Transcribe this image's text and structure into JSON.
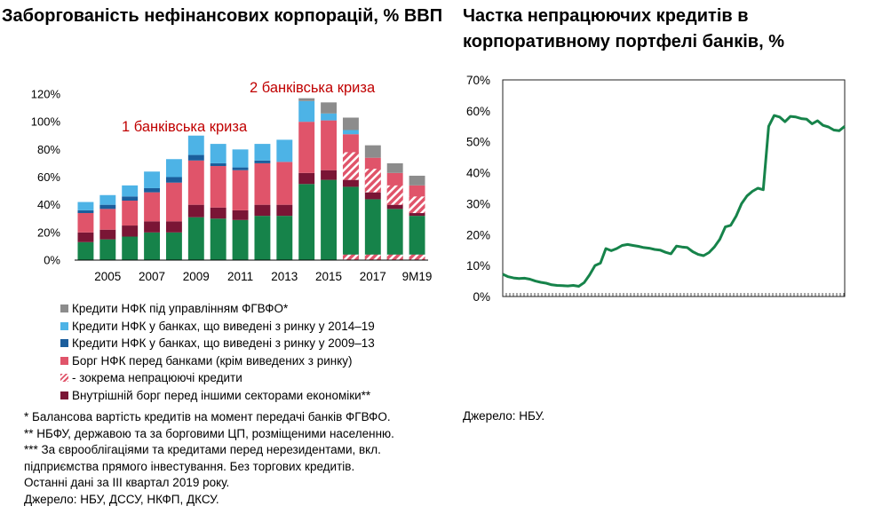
{
  "left": {
    "title": "Заборгованість нефінансових корпорацій, % ВВП",
    "crisis_labels": [
      "2 банківська криза",
      "1 банківська криза"
    ],
    "legend": [
      {
        "label": "Кредити НФК під управлінням ФГВФО*",
        "color": "#8c8c8c",
        "kind": "solid"
      },
      {
        "label": "Кредити НФК у банках, що виведені з ринку у 2014–19",
        "color": "#4db3e6",
        "kind": "solid"
      },
      {
        "label": "Кредити НФК у банках, що виведені з ринку у 2009–13",
        "color": "#1b5e9c",
        "kind": "solid"
      },
      {
        "label": "Борг НФК перед банками (крім виведених з ринку)",
        "color": "#e0546a",
        "kind": "solid"
      },
      {
        "label": "- зокрема непрацюючі кредити",
        "color": "#e0546a",
        "kind": "hatch"
      },
      {
        "label": "Внутрішній борг перед іншими секторами економіки**",
        "color": "#7a1535",
        "kind": "solid"
      }
    ],
    "notes": [
      "* Балансова вартість кредитів на момент передачі банків ФГВФО.",
      "** НБФУ, державою та за борговими ЦП, розміщеними населенню.",
      "*** За єврооблігаціями та кредитами перед нерезидентами, вкл.",
      "підприємства прямого інвестування. Без торгових кредитів.",
      "Останні дані за III квартал 2019 року.",
      "Джерело: НБУ, ДССУ, НКФП, ДКСУ."
    ]
  },
  "right": {
    "title": "Частка непрацюючих кредитів в корпоративному портфелі банків, %",
    "source": "Джерело: НБУ."
  },
  "colors": {
    "green": "#16834a",
    "maroon": "#7a1535",
    "red": "#e0546a",
    "darkblue": "#1b5e9c",
    "lightblue": "#4db3e6",
    "gray": "#8c8c8c",
    "crisis_text": "#c00000",
    "line": "#16834a"
  },
  "chart_data": [
    {
      "type": "bar",
      "stacked": true,
      "categories": [
        "2004",
        "2005",
        "2006",
        "2007",
        "2008",
        "2009",
        "2010",
        "2011",
        "2012",
        "2013",
        "2014",
        "2015",
        "2016",
        "2017",
        "2018",
        "9М19"
      ],
      "tick_labels": [
        "2005",
        "2007",
        "2009",
        "2011",
        "2013",
        "2015",
        "2017",
        "9М19"
      ],
      "ylim": [
        0,
        120
      ],
      "yticks": [
        "0%",
        "20%",
        "40%",
        "60%",
        "80%",
        "100%",
        "120%"
      ],
      "series": [
        {
          "name": "Внутрішній борг перед іншими секторами економіки**",
          "color_key": "green",
          "values": [
            13,
            15,
            17,
            20,
            20,
            31,
            30,
            29,
            32,
            32,
            55,
            58,
            53,
            44,
            37,
            32
          ]
        },
        {
          "name": "Внутрішній борг перед іншими секторами економіки**",
          "color_key": "maroon",
          "values": [
            7,
            7,
            8,
            8,
            8,
            9,
            8,
            7,
            8,
            8,
            8,
            7,
            5,
            5,
            3,
            2
          ]
        },
        {
          "name": "Борг НФК перед банками (крім виведених з ринку)",
          "color_key": "red",
          "values": [
            14,
            15,
            18,
            21,
            28,
            32,
            30,
            29,
            30,
            31,
            37,
            36,
            33,
            25,
            23,
            20
          ]
        },
        {
          "name": "Кредити НФК у банках, що виведені з ринку у 2009–13",
          "color_key": "darkblue",
          "values": [
            2,
            3,
            3,
            3,
            4,
            4,
            2,
            2,
            2,
            0,
            0,
            0,
            0,
            0,
            0,
            0
          ]
        },
        {
          "name": "Кредити НФК у банках, що виведені з ринку у 2014–19",
          "color_key": "lightblue",
          "values": [
            6,
            7,
            8,
            12,
            13,
            14,
            14,
            13,
            12,
            16,
            15,
            5,
            3,
            0,
            0,
            0
          ]
        },
        {
          "name": "Кредити НФК під управлінням ФГВФО*",
          "color_key": "gray",
          "values": [
            0,
            0,
            0,
            0,
            0,
            0,
            0,
            0,
            0,
            0,
            2,
            8,
            9,
            9,
            7,
            7
          ]
        }
      ],
      "npl_hatched_share": [
        0,
        0,
        0,
        0,
        0,
        0,
        0,
        0,
        0,
        0,
        0,
        0,
        20,
        17,
        14,
        12
      ]
    },
    {
      "type": "line",
      "ylim": [
        0,
        70
      ],
      "yticks": [
        "0%",
        "10%",
        "20%",
        "30%",
        "40%",
        "50%",
        "60%",
        "70%"
      ],
      "values": [
        7.2,
        6.4,
        6.0,
        5.8,
        5.9,
        5.6,
        5.0,
        4.6,
        4.3,
        3.8,
        3.6,
        3.5,
        3.4,
        3.6,
        3.3,
        4.5,
        7,
        10,
        10.8,
        15.5,
        14.8,
        15.5,
        16.5,
        16.8,
        16.5,
        16.2,
        15.8,
        15.6,
        15.2,
        15.0,
        14.3,
        13.8,
        16.3,
        16.0,
        15.8,
        14.5,
        13.6,
        13.2,
        14.2,
        16.0,
        18.5,
        22.5,
        23.0,
        26.0,
        30.0,
        32.5,
        34.0,
        35.0,
        34.5,
        55,
        58.5,
        58.0,
        56.5,
        58.2,
        58.0,
        57.5,
        57.3,
        55.8,
        56.8,
        55.3,
        54.8,
        53.8,
        53.6,
        55.0
      ]
    }
  ]
}
